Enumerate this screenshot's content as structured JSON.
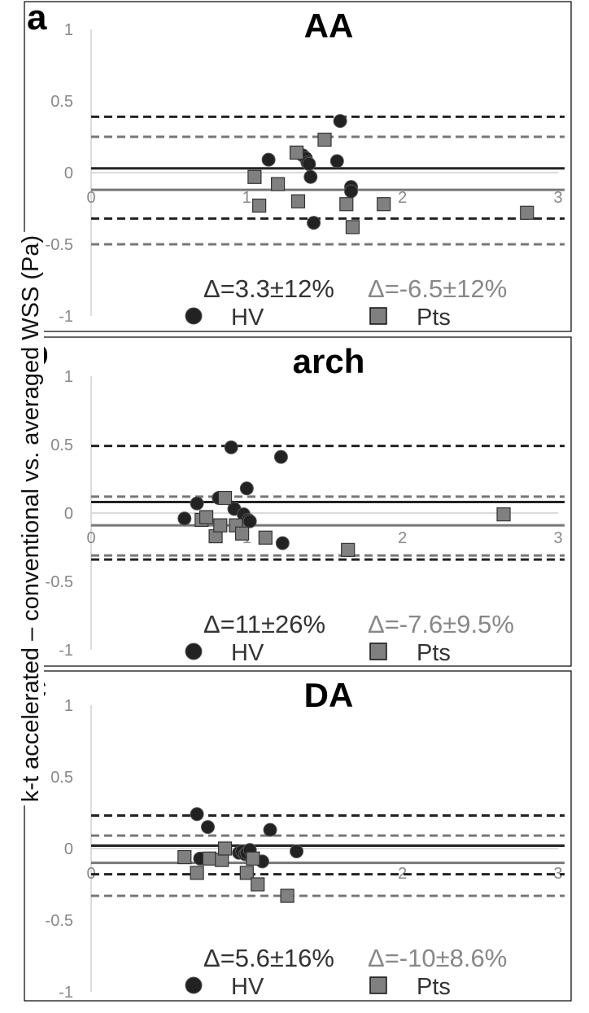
{
  "y_axis_label": "k-t accelerated – conventional vs. averaged WSS (Pa)",
  "legend": {
    "hv_label": "HV",
    "pts_label": "Pts"
  },
  "colors": {
    "hv_marker": "#222222",
    "pts_marker": "#808080",
    "hv_lines": "#222222",
    "pts_lines": "#777777",
    "hv_text": "#333333",
    "pts_text": "#888888"
  },
  "chart_data": [
    {
      "type": "scatter",
      "panel_letter": "a",
      "title": "AA",
      "xlim": [
        0,
        3
      ],
      "ylim": [
        -1,
        1
      ],
      "x_ticks": [
        "0",
        "1",
        "2",
        "3"
      ],
      "y_ticks": [
        "1",
        "0.5",
        "0",
        "-0.5",
        "-1"
      ],
      "hv_stat": "Δ=3.3±12%",
      "pts_stat": "Δ=-6.5±12%",
      "hv_lines": {
        "mean": 0.03,
        "upper": 0.39,
        "lower": -0.32
      },
      "pts_lines": {
        "mean": -0.12,
        "upper": 0.25,
        "lower": -0.5
      },
      "series": [
        {
          "name": "HV",
          "marker": "circle",
          "x": [
            1.14,
            1.36,
            1.38,
            1.39,
            1.4,
            1.41,
            1.43,
            1.58,
            1.6,
            1.67,
            1.67
          ],
          "y": [
            0.09,
            0.12,
            0.1,
            0.07,
            0.06,
            -0.03,
            -0.35,
            0.08,
            0.36,
            -0.1,
            -0.13
          ]
        },
        {
          "name": "Pts",
          "marker": "square",
          "x": [
            1.05,
            1.08,
            1.2,
            1.32,
            1.33,
            1.5,
            1.64,
            1.68,
            1.88,
            2.8
          ],
          "y": [
            -0.03,
            -0.23,
            -0.08,
            0.14,
            -0.2,
            0.23,
            -0.22,
            -0.38,
            -0.22,
            -0.28
          ]
        }
      ]
    },
    {
      "type": "scatter",
      "panel_letter": "b",
      "title": "arch",
      "xlim": [
        0,
        3
      ],
      "ylim": [
        -1,
        1
      ],
      "x_ticks": [
        "0",
        "1",
        "2",
        "3"
      ],
      "y_ticks": [
        "1",
        "0.5",
        "0",
        "-0.5",
        "-1"
      ],
      "hv_stat": "Δ=11±26%",
      "pts_stat": "Δ=-7.6±9.5%",
      "hv_lines": {
        "mean": 0.08,
        "upper": 0.49,
        "lower": -0.34
      },
      "pts_lines": {
        "mean": -0.09,
        "upper": 0.12,
        "lower": -0.31
      },
      "series": [
        {
          "name": "HV",
          "marker": "circle",
          "x": [
            0.6,
            0.68,
            0.82,
            0.9,
            0.92,
            0.98,
            1.0,
            1.01,
            1.02,
            1.22,
            1.23
          ],
          "y": [
            -0.04,
            0.07,
            0.11,
            0.48,
            0.03,
            -0.01,
            0.18,
            -0.05,
            -0.06,
            0.41,
            -0.22
          ]
        },
        {
          "name": "Pts",
          "marker": "square",
          "x": [
            0.71,
            0.74,
            0.8,
            0.83,
            0.86,
            0.93,
            0.97,
            1.12,
            1.65,
            2.65
          ],
          "y": [
            -0.05,
            -0.03,
            -0.17,
            -0.09,
            0.11,
            -0.09,
            -0.15,
            -0.18,
            -0.27,
            -0.01
          ]
        }
      ]
    },
    {
      "type": "scatter",
      "panel_letter": "c",
      "title": "DA",
      "xlim": [
        0,
        3
      ],
      "ylim": [
        -1,
        1
      ],
      "x_ticks": [
        "0",
        "1",
        "2",
        "3"
      ],
      "y_ticks": [
        "1",
        "0.5",
        "0",
        "-0.5",
        "-1"
      ],
      "hv_stat": "Δ=5.6±16%",
      "pts_stat": "Δ=-10±8.6%",
      "hv_lines": {
        "mean": 0.02,
        "upper": 0.23,
        "lower": -0.18
      },
      "pts_lines": {
        "mean": -0.1,
        "upper": 0.09,
        "lower": -0.33
      },
      "series": [
        {
          "name": "HV",
          "marker": "circle",
          "x": [
            0.68,
            0.7,
            0.75,
            0.95,
            0.97,
            0.99,
            1.0,
            1.02,
            1.1,
            1.15,
            1.32
          ],
          "y": [
            0.24,
            -0.07,
            0.15,
            -0.03,
            -0.02,
            -0.04,
            -0.03,
            -0.01,
            -0.09,
            0.13,
            -0.02
          ]
        },
        {
          "name": "Pts",
          "marker": "square",
          "x": [
            0.6,
            0.68,
            0.76,
            0.84,
            0.86,
            1.0,
            1.04,
            1.07,
            1.26
          ],
          "y": [
            -0.06,
            -0.17,
            -0.07,
            -0.08,
            0.0,
            -0.17,
            -0.07,
            -0.25,
            -0.33
          ]
        }
      ]
    }
  ]
}
